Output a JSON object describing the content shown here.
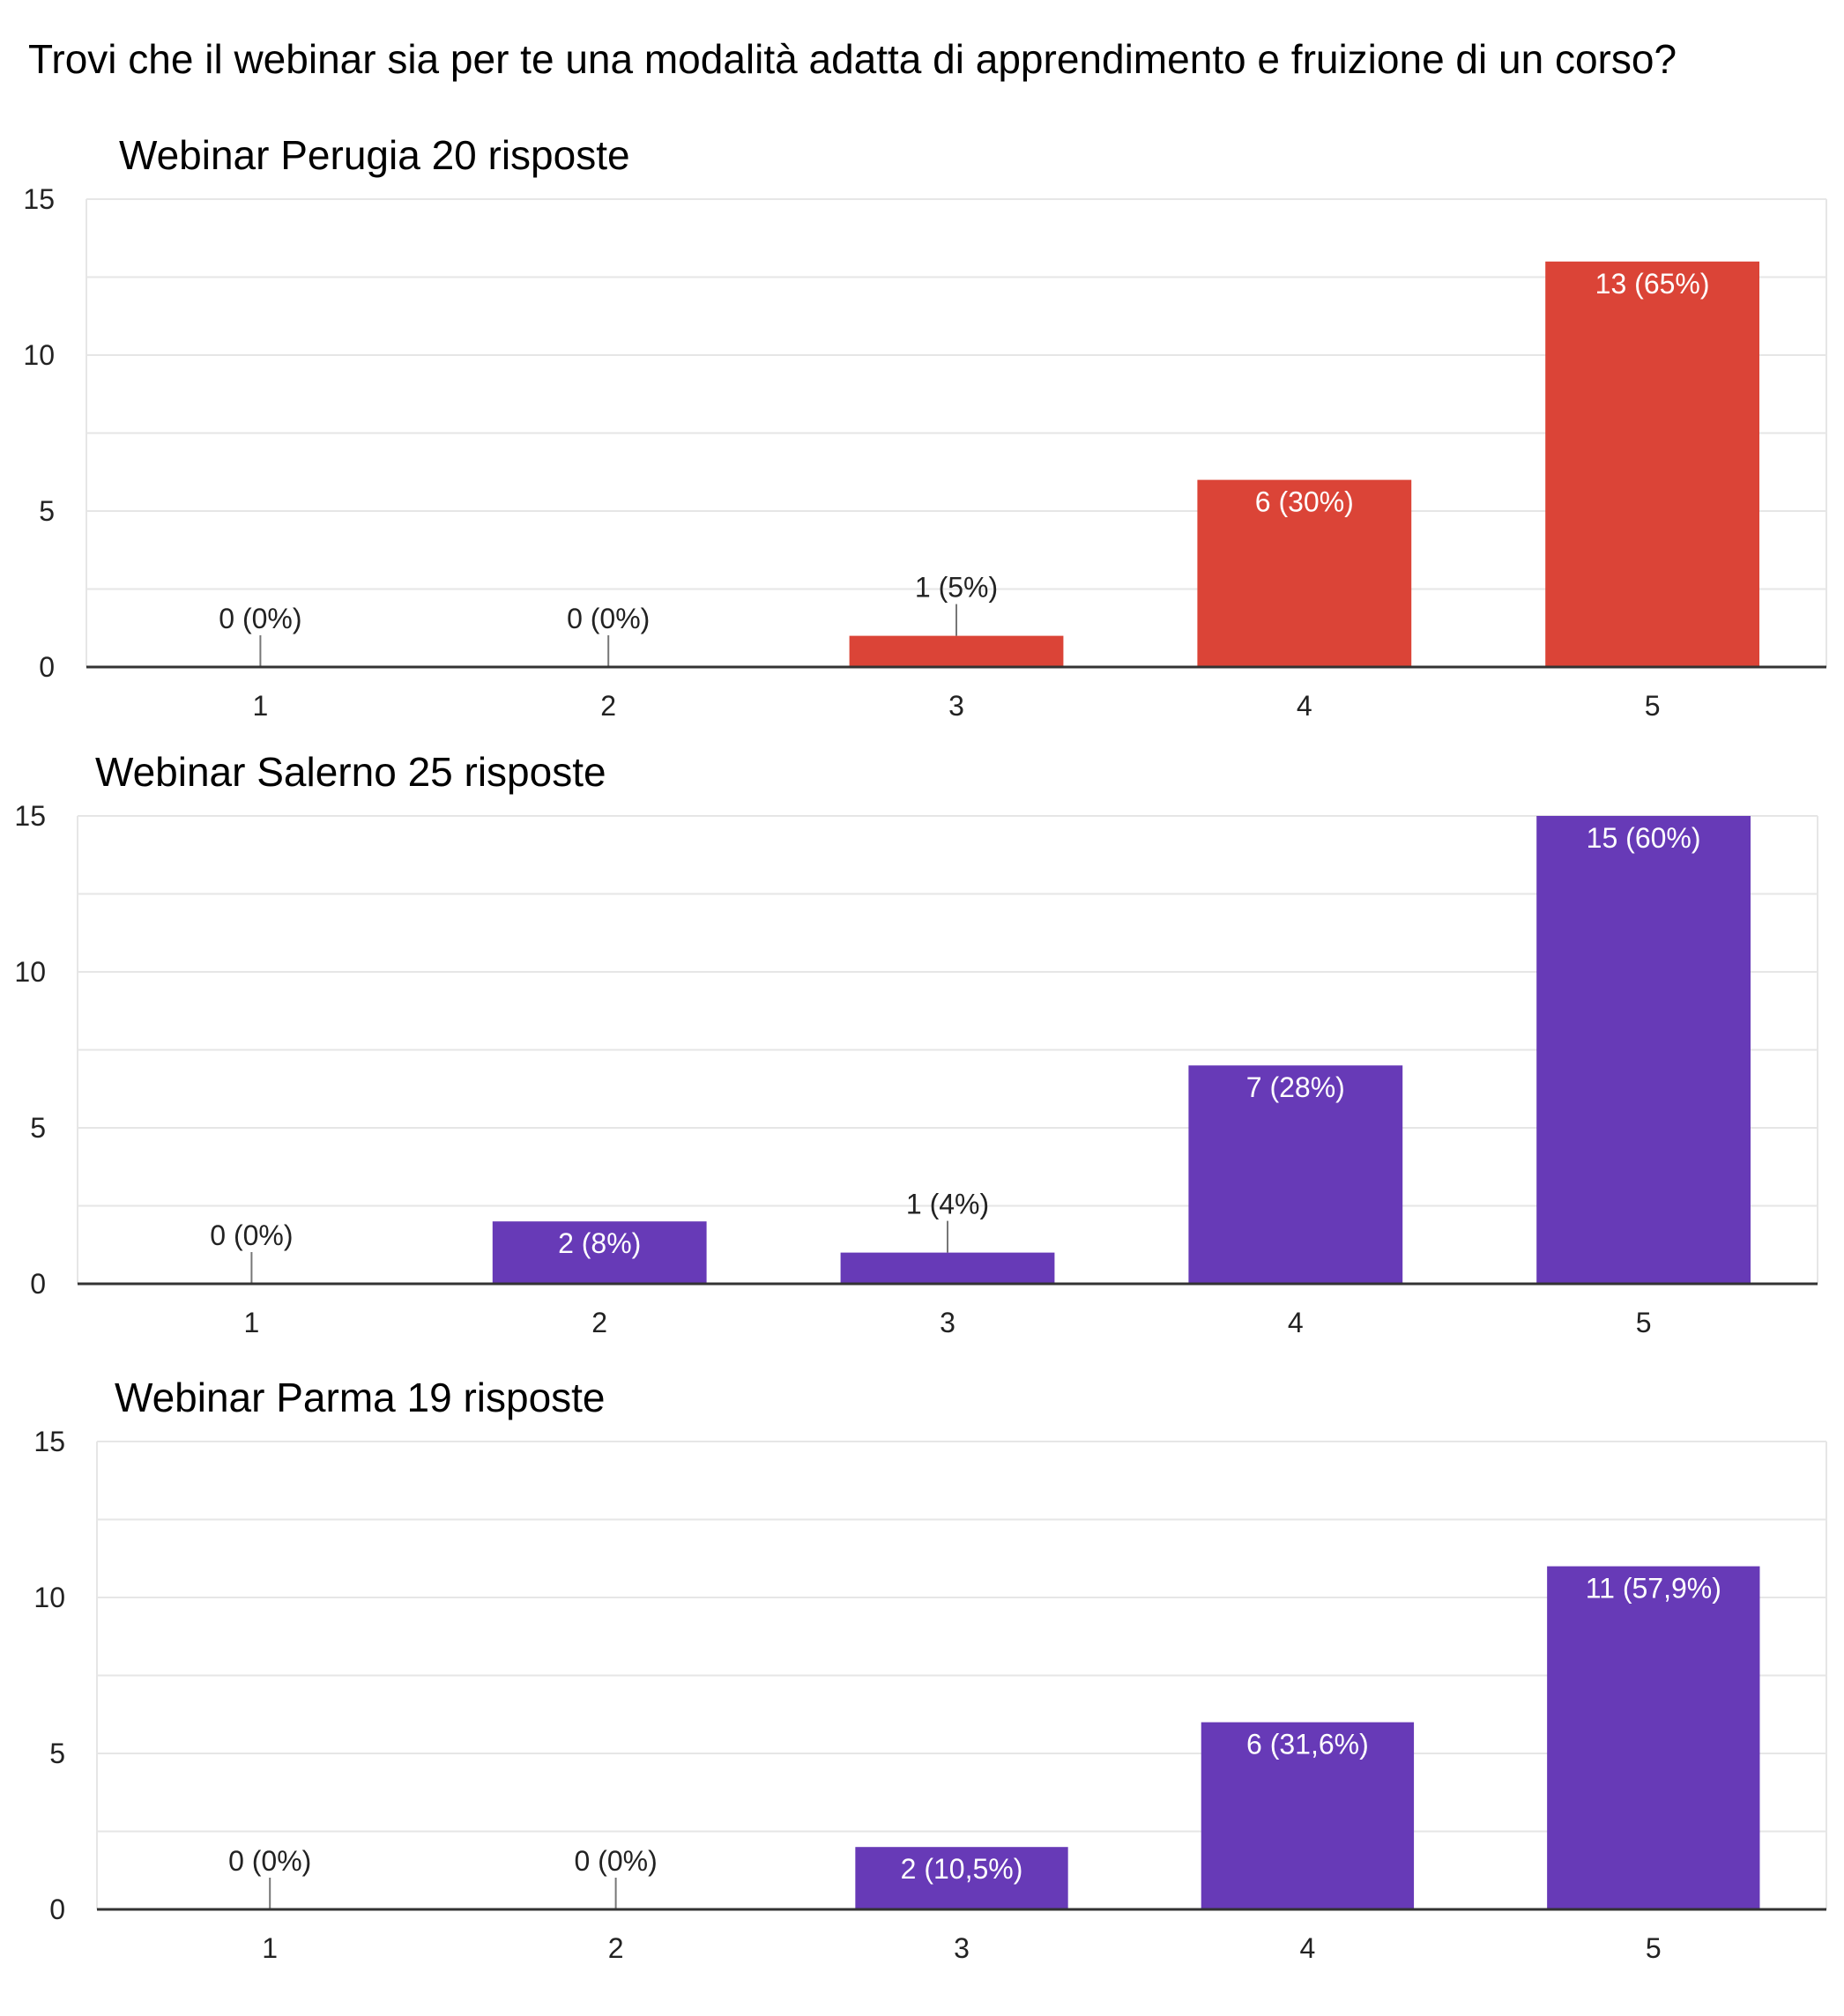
{
  "question": "Trovi che il webinar sia per te una modalità adatta di apprendimento e fruizione di un corso?",
  "chart_data": [
    {
      "type": "bar",
      "title": "Webinar Perugia 20 risposte",
      "categories": [
        "1",
        "2",
        "3",
        "4",
        "5"
      ],
      "values": [
        0,
        0,
        1,
        6,
        13
      ],
      "labels": [
        "0 (0%)",
        "0 (0%)",
        "1 (5%)",
        "6 (30%)",
        "13 (65%)"
      ],
      "yticks": [
        0,
        5,
        10,
        15
      ],
      "ylim": [
        0,
        15
      ],
      "color": "#db4437",
      "grid": true
    },
    {
      "type": "bar",
      "title": "Webinar Salerno 25 risposte",
      "categories": [
        "1",
        "2",
        "3",
        "4",
        "5"
      ],
      "values": [
        0,
        2,
        1,
        7,
        15
      ],
      "labels": [
        "0 (0%)",
        "2 (8%)",
        "1 (4%)",
        "7 (28%)",
        "15 (60%)"
      ],
      "yticks": [
        0,
        5,
        10,
        15
      ],
      "ylim": [
        0,
        15
      ],
      "color": "#673ab7",
      "grid": true
    },
    {
      "type": "bar",
      "title": "Webinar Parma 19 risposte",
      "categories": [
        "1",
        "2",
        "3",
        "4",
        "5"
      ],
      "values": [
        0,
        0,
        2,
        6,
        11
      ],
      "labels": [
        "0 (0%)",
        "0 (0%)",
        "2 (10,5%)",
        "6 (31,6%)",
        "11 (57,9%)"
      ],
      "yticks": [
        0,
        5,
        10,
        15
      ],
      "ylim": [
        0,
        15
      ],
      "color": "#673ab7",
      "grid": true
    }
  ]
}
